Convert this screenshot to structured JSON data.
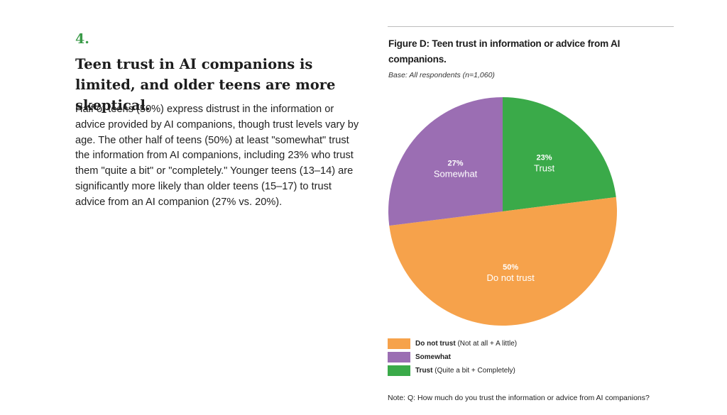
{
  "section": {
    "number": "4.",
    "headline": "Teen trust in AI companions is limited, and older teens are more skeptical.",
    "body": "Half of teens (50%) express distrust in the information or advice provided by AI companions, though trust levels vary by age. The other half of teens (50%) at least \"somewhat\" trust the information from AI companions, including 23% who trust them \"quite a bit\" or \"completely.\" Younger teens (13–14) are significantly more likely than older teens (15–17) to trust advice from an AI companion (27% vs. 20%)."
  },
  "figure": {
    "title": "Figure D: Teen trust in information or advice from AI companions.",
    "base": "Base: All respondents (n=1,060)",
    "note": "Note: Q: How much do you trust the information or advice from AI companions?"
  },
  "chart_data": {
    "type": "pie",
    "start": "12 o'clock, clockwise",
    "slices": [
      {
        "label": "Trust",
        "value": 23,
        "pct_label": "23%",
        "color": "#3aaa49"
      },
      {
        "label": "Do not trust",
        "value": 50,
        "pct_label": "50%",
        "color": "#f6a24b"
      },
      {
        "label": "Somewhat",
        "value": 27,
        "pct_label": "27%",
        "color": "#9b6eb3"
      }
    ],
    "legend": [
      {
        "name": "Do not trust",
        "detail": "(Not at all + A little)",
        "color": "#f6a24b"
      },
      {
        "name": "Somewhat",
        "detail": "",
        "color": "#9b6eb3"
      },
      {
        "name": "Trust",
        "detail": "(Quite a bit + Completely)",
        "color": "#3aaa49"
      }
    ]
  }
}
